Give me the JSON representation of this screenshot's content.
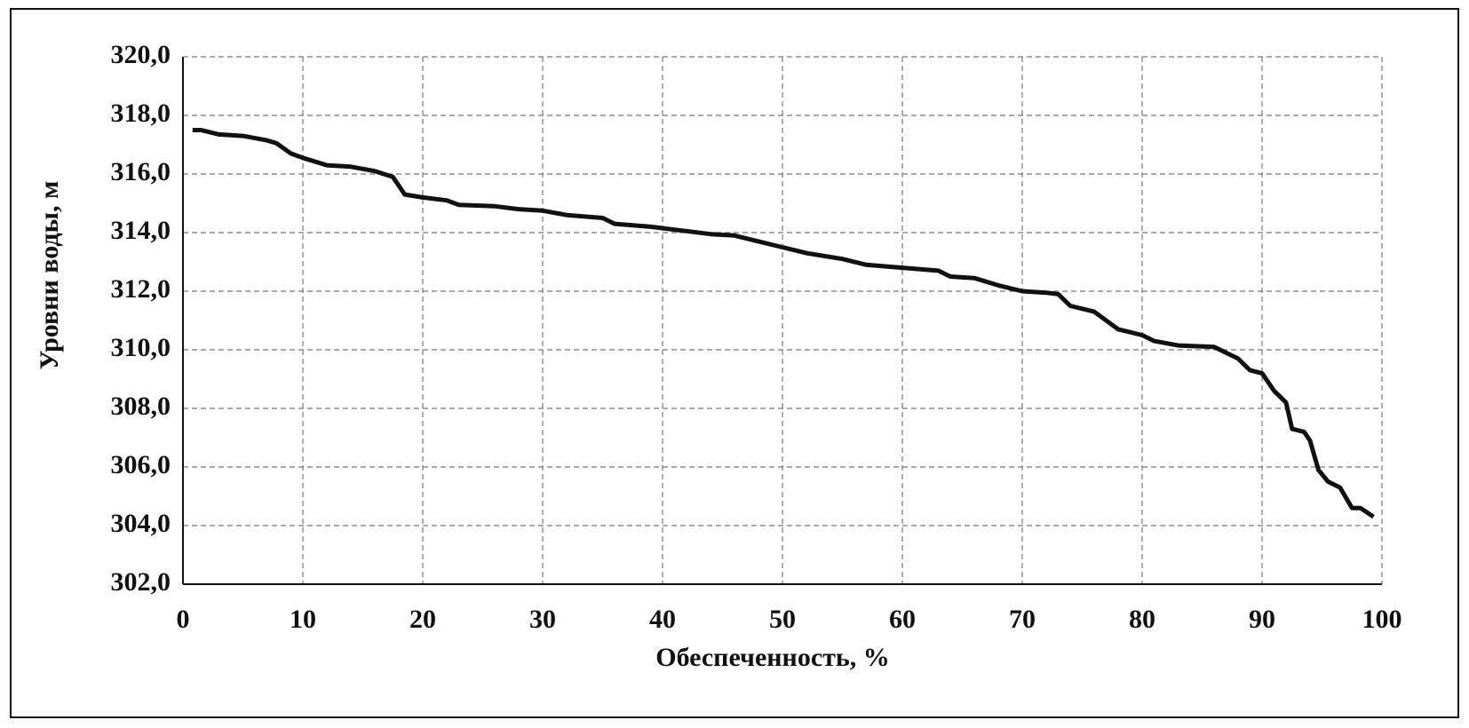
{
  "chart_data": {
    "type": "line",
    "x_label": "Обеспеченность, %",
    "y_label": "Уровни воды, м",
    "series": [
      {
        "color": "#111111",
        "x": [
          0.8,
          1.5,
          3,
          5,
          7,
          7.8,
          9,
          10,
          12,
          14,
          16,
          17.5,
          18.5,
          20,
          22,
          23,
          26,
          28,
          30,
          32,
          35,
          36,
          39,
          42,
          44,
          46,
          48,
          50,
          52,
          55,
          57,
          60,
          63,
          64,
          66,
          68,
          70,
          72,
          73,
          74,
          76,
          77,
          78,
          80,
          81,
          83,
          86,
          88,
          89,
          90,
          91,
          92,
          92.5,
          93.5,
          94,
          94.7,
          95.5,
          96.5,
          97.5,
          98.2,
          99.3
        ],
        "values": [
          317.5,
          317.5,
          317.35,
          317.3,
          317.15,
          317.05,
          316.7,
          316.55,
          316.3,
          316.25,
          316.1,
          315.9,
          315.3,
          315.2,
          315.1,
          314.95,
          314.9,
          314.8,
          314.75,
          314.6,
          314.5,
          314.3,
          314.2,
          314.05,
          313.95,
          313.9,
          313.7,
          313.5,
          313.3,
          313.1,
          312.9,
          312.8,
          312.7,
          312.5,
          312.45,
          312.2,
          312.0,
          311.95,
          311.9,
          311.5,
          311.3,
          311.0,
          310.7,
          310.5,
          310.3,
          310.15,
          310.1,
          309.7,
          309.3,
          309.2,
          308.6,
          308.2,
          307.3,
          307.2,
          306.9,
          305.9,
          305.5,
          305.3,
          304.6,
          304.6,
          304.3
        ]
      }
    ],
    "xlim": [
      0,
      100
    ],
    "xticks": [
      0,
      10,
      20,
      30,
      40,
      50,
      60,
      70,
      80,
      90,
      100
    ],
    "ylim": [
      302,
      320
    ],
    "yticks": [
      {
        "value": 302,
        "label": "302,0"
      },
      {
        "value": 304,
        "label": "304,0"
      },
      {
        "value": 306,
        "label": "306,0"
      },
      {
        "value": 308,
        "label": "308,0"
      },
      {
        "value": 310,
        "label": "310,0"
      },
      {
        "value": 312,
        "label": "312,0"
      },
      {
        "value": 314,
        "label": "314,0"
      },
      {
        "value": 316,
        "label": "316,0"
      },
      {
        "value": 318,
        "label": "318,0"
      },
      {
        "value": 320,
        "label": "320,0"
      }
    ],
    "grid": true
  }
}
